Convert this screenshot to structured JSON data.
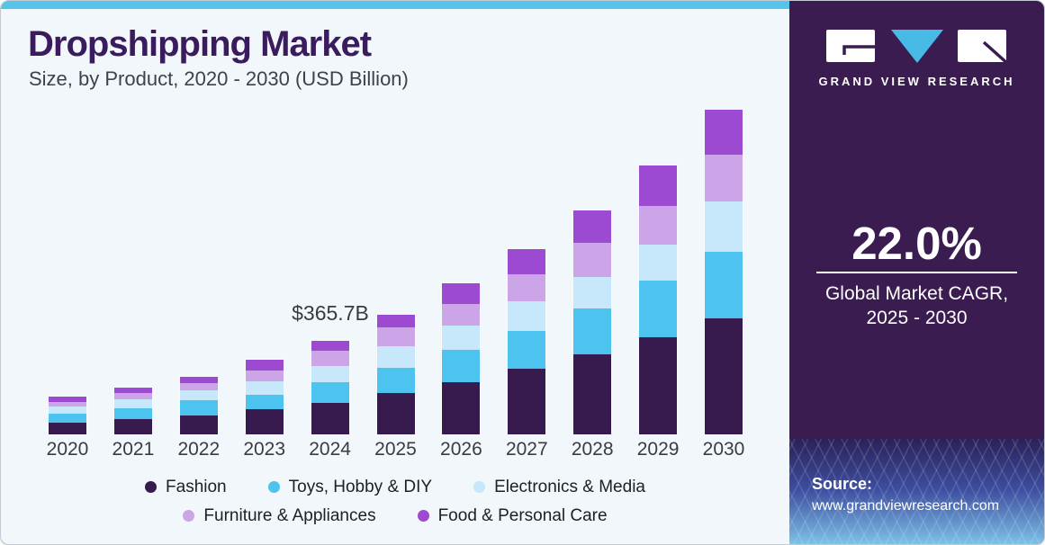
{
  "header": {
    "title": "Dropshipping Market",
    "subtitle": "Size, by Product, 2020 - 2030 (USD Billion)"
  },
  "chart_data": {
    "type": "bar",
    "stacked": true,
    "title": "Dropshipping Market Size, by Product, 2020 - 2030 (USD Billion)",
    "xlabel": "",
    "ylabel": "USD Billion",
    "ylim": [
      0,
      1300
    ],
    "grid": false,
    "legend_position": "bottom",
    "legend_rows": [
      3,
      2
    ],
    "categories": [
      "2020",
      "2021",
      "2022",
      "2023",
      "2024",
      "2025",
      "2026",
      "2027",
      "2028",
      "2029",
      "2030"
    ],
    "series": [
      {
        "name": "Fashion",
        "color": "#371A4E",
        "values": [
          44.5,
          59.6,
          74.7,
          98.9,
          121.6,
          161.3,
          203.4,
          257.7,
          313.1,
          378.6,
          451.2
        ]
      },
      {
        "name": "Toys, Hobby & DIY",
        "color": "#4DC3EF",
        "values": [
          35.1,
          43.1,
          57.5,
          55.4,
          80.6,
          97.1,
          127.3,
          145.5,
          176.7,
          221.9,
          260.5
        ]
      },
      {
        "name": "Electronics & Media",
        "color": "#C6E8FA",
        "values": [
          30.2,
          35.1,
          40.7,
          53.6,
          64.2,
          84.1,
          93.6,
          115.7,
          124.8,
          140.2,
          195.3
        ]
      },
      {
        "name": "Furniture & Appliances",
        "color": "#CCA4E8",
        "values": [
          16.5,
          23.5,
          27.0,
          41.0,
          58.6,
          73.6,
          83.1,
          105.2,
          131.1,
          148.7,
          183.4
        ]
      },
      {
        "name": "Food & Personal Care",
        "color": "#9C4AD2",
        "values": [
          20.0,
          21.0,
          23.5,
          43.8,
          40.7,
          50.1,
          80.6,
          99.2,
          126.2,
          159.9,
          175.3
        ]
      }
    ],
    "totals": [
      146.3,
      182.3,
      223.4,
      292.7,
      365.7,
      466.2,
      588.0,
      723.3,
      871.9,
      1049.3,
      1265.7
    ],
    "annotation": {
      "text": "$365.7B",
      "year": "2024"
    }
  },
  "sidebar": {
    "brand_name": "GRAND VIEW RESEARCH",
    "cagr_value": "22.0%",
    "cagr_label_line1": "Global Market CAGR,",
    "cagr_label_line2": "2025 - 2030",
    "source_label": "Source:",
    "source_url": "www.grandviewresearch.com",
    "background_color": "#3A1C51",
    "accent_color": "#56C4EA"
  }
}
